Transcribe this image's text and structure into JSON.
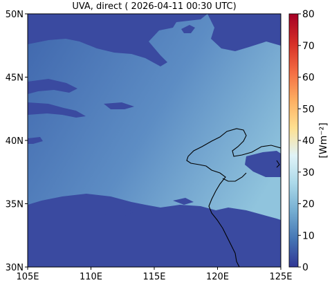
{
  "title": "UVA, direct ( 2026-04-11 00:30 UTC)",
  "map": {
    "lon_ticks": [
      "105E",
      "110E",
      "115E",
      "120E",
      "125E"
    ],
    "lat_ticks": [
      "50N",
      "45N",
      "40N",
      "35N",
      "30N"
    ],
    "lon_range": [
      105,
      125
    ],
    "lat_range": [
      30,
      50
    ]
  },
  "colorbar": {
    "ticks": [
      "80",
      "70",
      "60",
      "50",
      "40",
      "30",
      "20",
      "10",
      "0"
    ],
    "range": [
      0,
      80
    ],
    "unit_label": "[Wm⁻²]",
    "colors": [
      "#313695",
      "#4575b4",
      "#74add1",
      "#abd9e9",
      "#e0f3f8",
      "#fee090",
      "#fdae61",
      "#f46d43",
      "#d73027",
      "#a50026"
    ]
  },
  "colors": {
    "cloud": "#3a4aa0",
    "clear_low": "#3f66ad",
    "clear_high": "#8ec1dc",
    "coastline": "#000000"
  }
}
